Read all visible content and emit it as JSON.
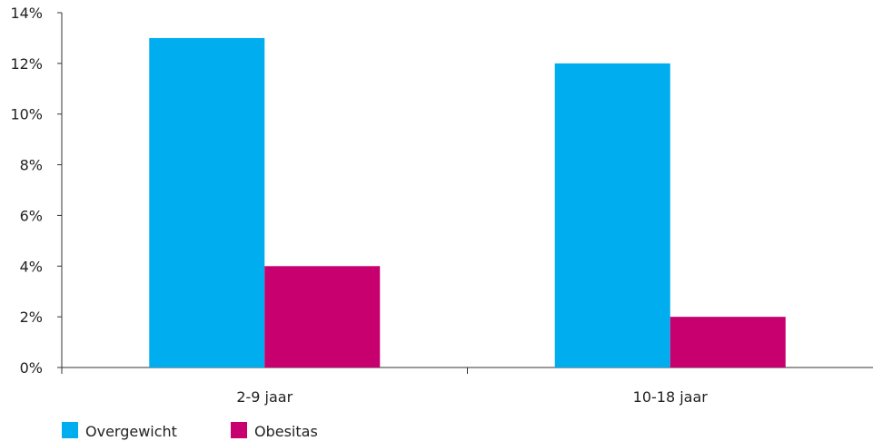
{
  "chart_data": {
    "type": "bar",
    "categories": [
      "2-9 jaar",
      "10-18 jaar"
    ],
    "series": [
      {
        "name": "Overgewicht",
        "values": [
          13,
          12
        ],
        "color": "#00adee"
      },
      {
        "name": "Obesitas",
        "values": [
          4,
          2
        ],
        "color": "#c8006f"
      }
    ],
    "ylim": [
      0,
      14
    ],
    "yticks": [
      0,
      2,
      4,
      6,
      8,
      10,
      12,
      14
    ],
    "ytick_suffix": "%",
    "grid": false,
    "legend": "bottom-left",
    "title": "",
    "xlabel": "",
    "ylabel": ""
  }
}
